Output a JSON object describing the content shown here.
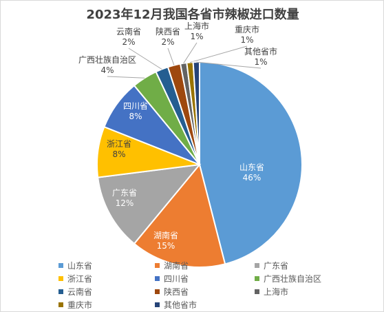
{
  "chart_data": {
    "type": "pie",
    "title": "2023年12月我国各省市辣椒进口数量",
    "slices": [
      {
        "name": "山东省",
        "value": 46,
        "label": "46%",
        "color": "#5B9BD5"
      },
      {
        "name": "湖南省",
        "value": 15,
        "label": "15%",
        "color": "#ED7D31"
      },
      {
        "name": "广东省",
        "value": 12,
        "label": "12%",
        "color": "#A5A5A5"
      },
      {
        "name": "浙江省",
        "value": 8,
        "label": "8%",
        "color": "#FFC000"
      },
      {
        "name": "四川省",
        "value": 8,
        "label": "8%",
        "color": "#4472C4"
      },
      {
        "name": "广西壮族自治区",
        "value": 4,
        "label": "4%",
        "color": "#70AD47"
      },
      {
        "name": "云南省",
        "value": 2,
        "label": "2%",
        "color": "#255E91"
      },
      {
        "name": "陕西省",
        "value": 2,
        "label": "2%",
        "color": "#9E480E"
      },
      {
        "name": "上海市",
        "value": 1,
        "label": "1%",
        "color": "#636363"
      },
      {
        "name": "重庆市",
        "value": 1,
        "label": "1%",
        "color": "#997300"
      },
      {
        "name": "其他省市",
        "value": 1,
        "label": "1%",
        "color": "#264478"
      }
    ],
    "legend_position": "bottom"
  }
}
